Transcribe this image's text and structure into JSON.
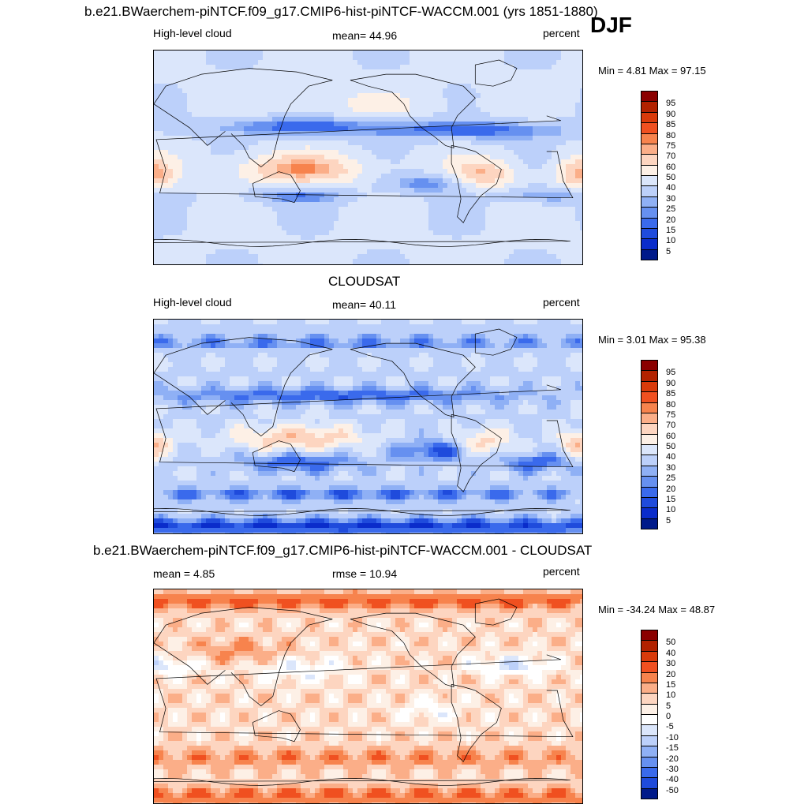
{
  "title": "b.e21.BWaerchem-piNTCF.f09_g17.CMIP6-hist-piNTCF-WACCM.001 (yrs 1851-1880)",
  "season": "DJF",
  "panels": [
    {
      "left_label": "High-level cloud",
      "center_label": "mean=  44.96",
      "right_label": "percent",
      "minmax": "Min =   4.81 Max =  97.15",
      "levels": [
        "95",
        "90",
        "85",
        "80",
        "75",
        "70",
        "60",
        "50",
        "40",
        "30",
        "25",
        "20",
        "15",
        "10",
        "5"
      ]
    },
    {
      "title": "CLOUDSAT",
      "left_label": "High-level cloud",
      "center_label": "mean=  40.11",
      "right_label": "percent",
      "minmax": "Min =   3.01 Max =  95.38",
      "levels": [
        "95",
        "90",
        "85",
        "80",
        "75",
        "70",
        "60",
        "50",
        "40",
        "30",
        "25",
        "20",
        "15",
        "10",
        "5"
      ]
    },
    {
      "title": "b.e21.BWaerchem-piNTCF.f09_g17.CMIP6-hist-piNTCF-WACCM.001 - CLOUDSAT",
      "left_label": "mean =   4.85",
      "center_label": "rmse =  10.94",
      "right_label": "percent",
      "minmax": "Min = -34.24 Max =  48.87",
      "levels": [
        "50",
        "40",
        "30",
        "20",
        "15",
        "10",
        "5",
        "0",
        "-5",
        "-10",
        "-15",
        "-20",
        "-30",
        "-40",
        "-50"
      ]
    }
  ],
  "colors": {
    "abs_scale": [
      "#8b0000",
      "#b22200",
      "#d93a0a",
      "#f05020",
      "#f7834d",
      "#fbae88",
      "#fdd5c0",
      "#fdf0e6",
      "#dbe6fb",
      "#bcd0fa",
      "#8fb0f5",
      "#6690f0",
      "#3a6aec",
      "#1f4bdc",
      "#0a2ccb",
      "#001a8a"
    ],
    "diff_scale": [
      "#8b0000",
      "#b22200",
      "#d93a0a",
      "#f05020",
      "#f7834d",
      "#fbae88",
      "#fdd5c0",
      "#fdf0e6",
      "#ffffff",
      "#dbe6fb",
      "#bcd0fa",
      "#8fb0f5",
      "#6690f0",
      "#3a6aec",
      "#1f4bdc",
      "#001a8a"
    ]
  },
  "chart_data": [
    {
      "type": "heatmap",
      "title": "b.e21.BWaerchem-piNTCF.f09_g17.CMIP6-hist-piNTCF-WACCM.001 (yrs 1851-1880)",
      "variable": "High-level cloud",
      "units": "percent",
      "season": "DJF",
      "mean": 44.96,
      "min": 4.81,
      "max": 97.15,
      "contour_levels": [
        5,
        10,
        15,
        20,
        25,
        30,
        40,
        50,
        60,
        70,
        75,
        80,
        85,
        90,
        95
      ]
    },
    {
      "type": "heatmap",
      "title": "CLOUDSAT",
      "variable": "High-level cloud",
      "units": "percent",
      "mean": 40.11,
      "min": 3.01,
      "max": 95.38,
      "contour_levels": [
        5,
        10,
        15,
        20,
        25,
        30,
        40,
        50,
        60,
        70,
        75,
        80,
        85,
        90,
        95
      ]
    },
    {
      "type": "heatmap",
      "title": "b.e21.BWaerchem-piNTCF.f09_g17.CMIP6-hist-piNTCF-WACCM.001 - CLOUDSAT",
      "units": "percent",
      "mean": 4.85,
      "rmse": 10.94,
      "min": -34.24,
      "max": 48.87,
      "contour_levels": [
        -50,
        -40,
        -30,
        -20,
        -15,
        -10,
        -5,
        0,
        5,
        10,
        15,
        20,
        30,
        40,
        50
      ]
    }
  ]
}
